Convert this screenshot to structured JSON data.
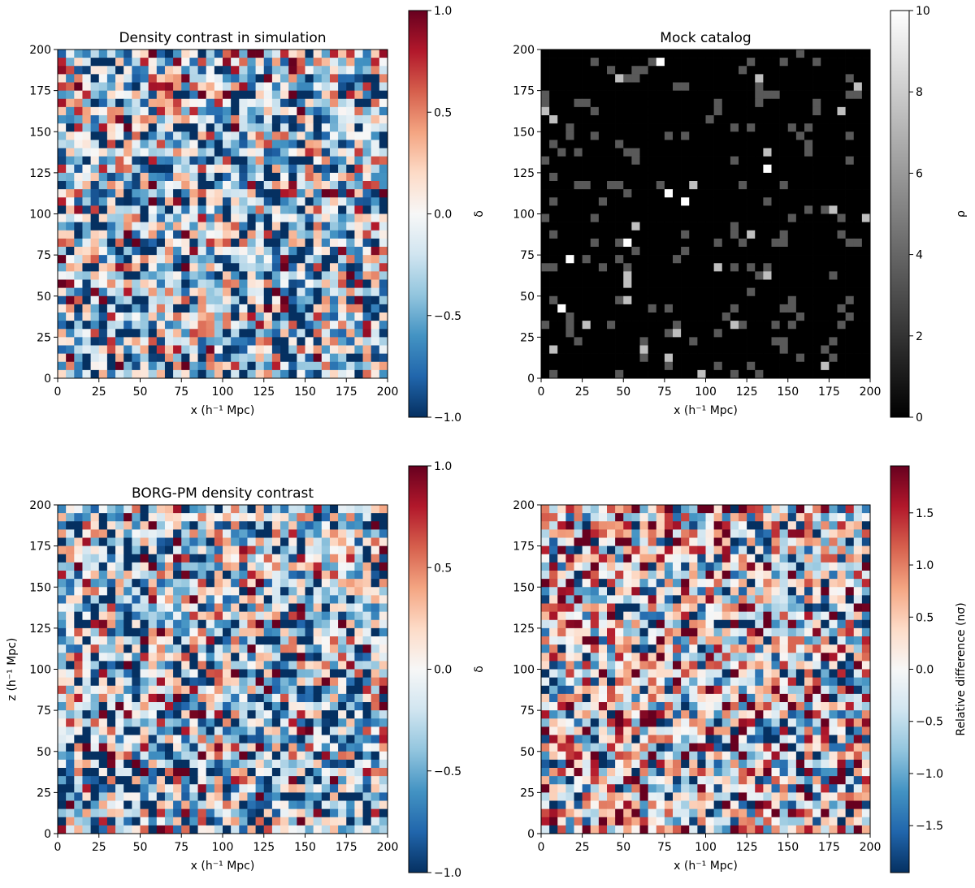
{
  "chart_data": [
    {
      "type": "heatmap",
      "title": "Density contrast in simulation",
      "xlabel": "x (h⁻¹ Mpc)",
      "ylabel": "",
      "xlim": [
        0,
        200
      ],
      "ylim": [
        0,
        200
      ],
      "xticks": [
        "0",
        "25",
        "50",
        "75",
        "100",
        "125",
        "150",
        "175",
        "200"
      ],
      "yticks": [
        "0",
        "25",
        "50",
        "75",
        "100",
        "125",
        "150",
        "175",
        "200"
      ],
      "grid_cells": 40,
      "seed": 7,
      "colormap": "RdBu_r",
      "colorbar": {
        "label": "δ",
        "range": [
          -1.0,
          1.0
        ],
        "ticks": [
          "−1.0",
          "−0.5",
          "0.0",
          "0.5",
          "1.0"
        ],
        "tick_values": [
          -1.0,
          -0.5,
          0.0,
          0.5,
          1.0
        ]
      }
    },
    {
      "type": "heatmap",
      "title": "Mock catalog",
      "xlabel": "x (h⁻¹ Mpc)",
      "ylabel": "",
      "xlim": [
        0,
        200
      ],
      "ylim": [
        0,
        200
      ],
      "xticks": [
        "0",
        "25",
        "50",
        "75",
        "100",
        "125",
        "150",
        "175",
        "200"
      ],
      "yticks": [
        "0",
        "25",
        "50",
        "75",
        "100",
        "125",
        "150",
        "175",
        "200"
      ],
      "grid_cells": 40,
      "seed": 13,
      "colormap": "gray",
      "colorbar": {
        "label": "ρ",
        "range": [
          0,
          10
        ],
        "ticks": [
          "0",
          "2",
          "4",
          "6",
          "8",
          "10"
        ],
        "tick_values": [
          0,
          2,
          4,
          6,
          8,
          10
        ]
      }
    },
    {
      "type": "heatmap",
      "title": "BORG-PM density contrast",
      "xlabel": "x (h⁻¹ Mpc)",
      "ylabel": "z (h⁻¹ Mpc)",
      "xlim": [
        0,
        200
      ],
      "ylim": [
        0,
        200
      ],
      "xticks": [
        "0",
        "25",
        "50",
        "75",
        "100",
        "125",
        "150",
        "175",
        "200"
      ],
      "yticks": [
        "0",
        "25",
        "50",
        "75",
        "100",
        "125",
        "150",
        "175",
        "200"
      ],
      "grid_cells": 40,
      "seed": 21,
      "colormap": "RdBu_r",
      "colorbar": {
        "label": "δ",
        "range": [
          -1.0,
          1.0
        ],
        "ticks": [
          "−1.0",
          "−0.5",
          "0.0",
          "0.5",
          "1.0"
        ],
        "tick_values": [
          -1.0,
          -0.5,
          0.0,
          0.5,
          1.0
        ]
      }
    },
    {
      "type": "heatmap",
      "title": "",
      "xlabel": "x (h⁻¹ Mpc)",
      "ylabel": "",
      "xlim": [
        0,
        200
      ],
      "ylim": [
        0,
        200
      ],
      "xticks": [
        "0",
        "25",
        "50",
        "75",
        "100",
        "125",
        "150",
        "175",
        "200"
      ],
      "yticks": [
        "0",
        "25",
        "50",
        "75",
        "100",
        "125",
        "150",
        "175",
        "200"
      ],
      "grid_cells": 40,
      "seed": 33,
      "colormap": "RdBu_r",
      "colorbar": {
        "label": "Relative difference (nσ)",
        "range": [
          -1.95,
          1.95
        ],
        "ticks": [
          "−1.5",
          "−1.0",
          "−0.5",
          "0.0",
          "0.5",
          "1.0",
          "1.5"
        ],
        "tick_values": [
          -1.5,
          -1.0,
          -0.5,
          0.0,
          0.5,
          1.0,
          1.5
        ]
      }
    }
  ]
}
